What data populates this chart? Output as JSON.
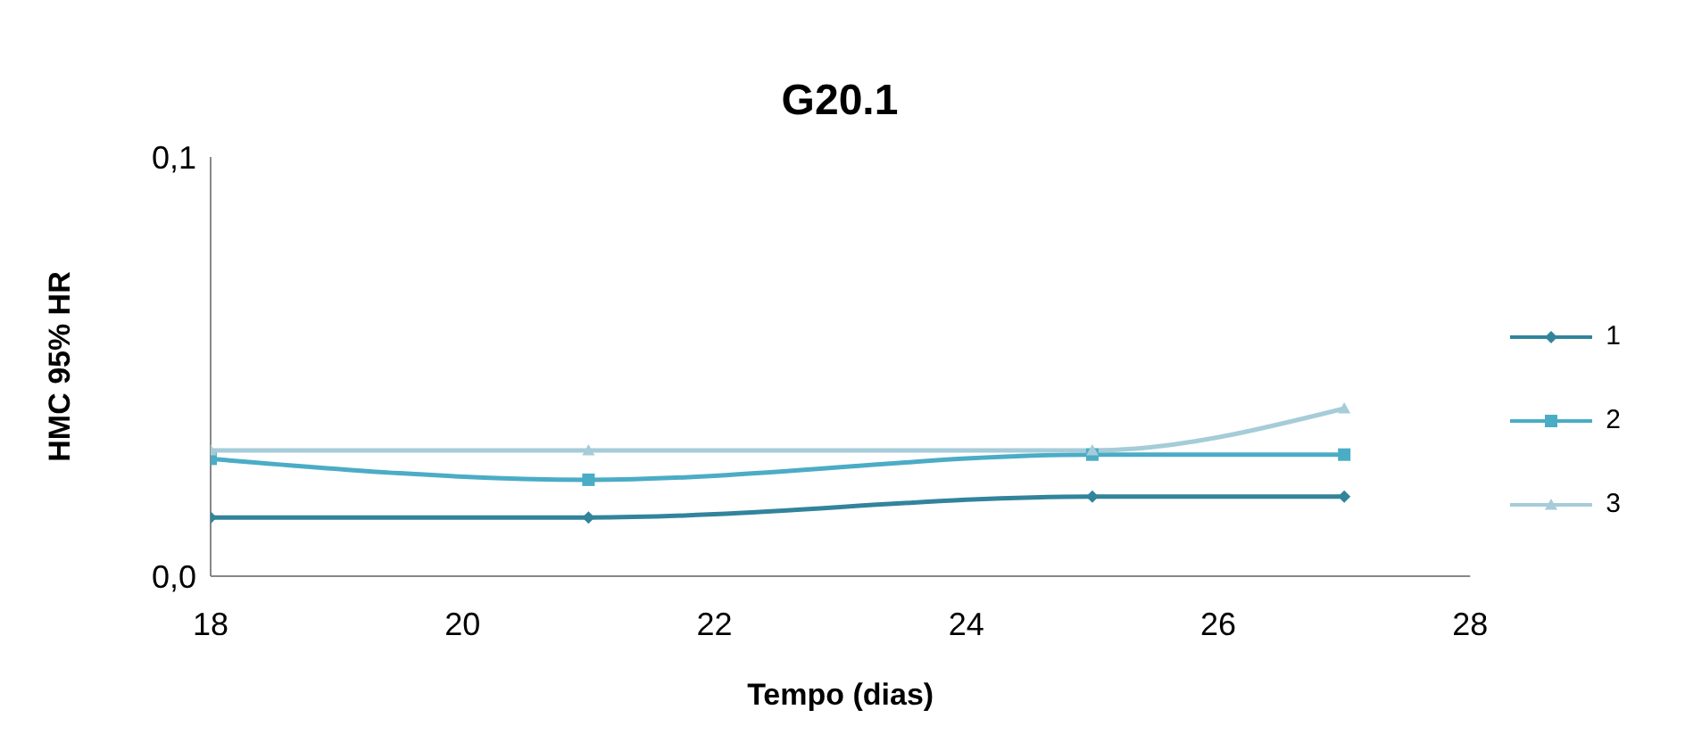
{
  "chart_data": {
    "type": "line",
    "title": "G20.1",
    "xlabel": "Tempo (dias)",
    "ylabel": "HMC 95% HR",
    "x": [
      18,
      21,
      25,
      27
    ],
    "series": [
      {
        "name": "1",
        "color": "#31849b",
        "marker": "diamond",
        "values": [
          0.014,
          0.014,
          0.019,
          0.019
        ]
      },
      {
        "name": "2",
        "color": "#4bacc6",
        "marker": "square",
        "values": [
          0.028,
          0.023,
          0.029,
          0.029
        ]
      },
      {
        "name": "3",
        "color": "#a5ccd8",
        "marker": "triangle",
        "values": [
          0.03,
          0.03,
          0.03,
          0.04
        ]
      }
    ],
    "xlim": [
      18,
      28
    ],
    "xticks": [
      18,
      20,
      22,
      24,
      26,
      28
    ],
    "ylim": [
      0,
      0.1
    ],
    "yticks": [
      {
        "value": 0,
        "label": "0,0"
      },
      {
        "value": 0.1,
        "label": "0,1"
      }
    ],
    "grid": false,
    "legend": "right"
  }
}
